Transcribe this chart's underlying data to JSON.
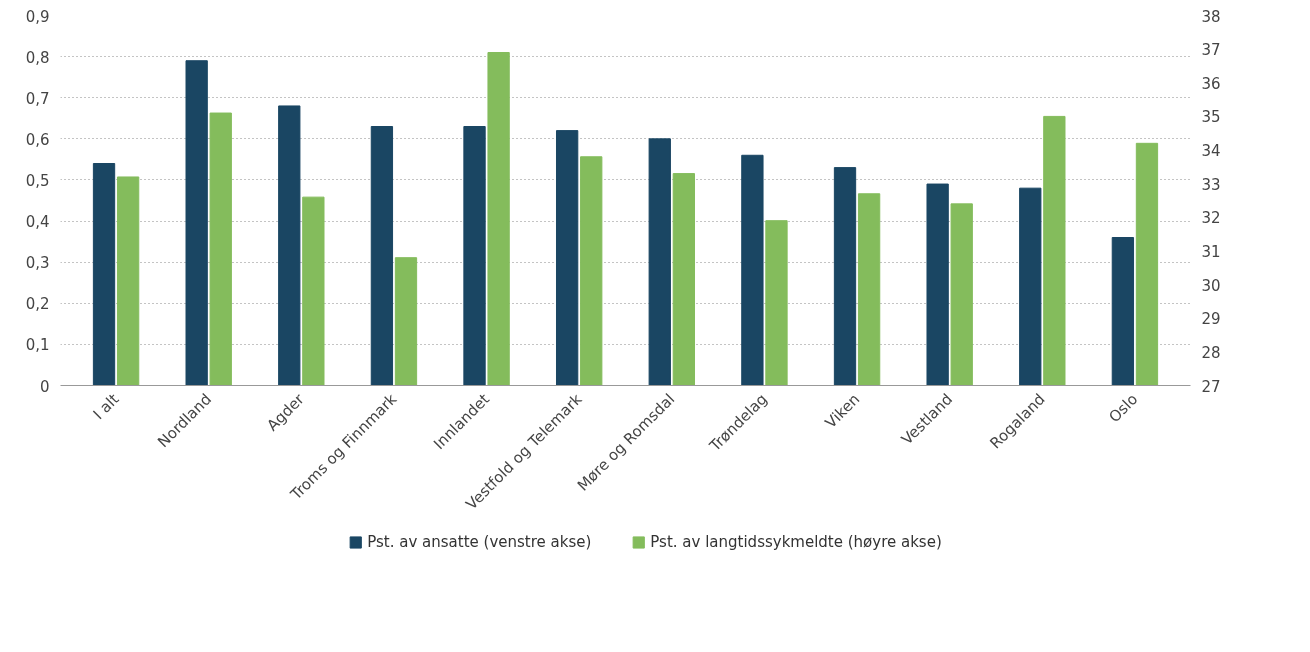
{
  "chart_data": {
    "type": "bar",
    "categories": [
      "I alt",
      "Nordland",
      "Agder",
      "Troms og Finnmark",
      "Innlandet",
      "Vestfold og Telemark",
      "Møre og Romsdal",
      "Trøndelag",
      "Viken",
      "Vestland",
      "Rogaland",
      "Oslo"
    ],
    "series": [
      {
        "name": "Pst. av ansatte (venstre akse)",
        "color": "#1a4663",
        "values": [
          0.54,
          0.79,
          0.68,
          0.63,
          0.63,
          0.62,
          0.6,
          0.56,
          0.53,
          0.49,
          0.48,
          0.36
        ]
      },
      {
        "name": "Pst. av langtidssykmeldte (høyre akse)",
        "color": "#84bc5c",
        "axis": "y2",
        "values": [
          33.2,
          35.1,
          32.6,
          30.8,
          36.9,
          33.8,
          33.3,
          31.9,
          32.7,
          32.4,
          35.0,
          34.2
        ]
      }
    ],
    "ylim": [
      0,
      0.9
    ],
    "yticks": [
      0,
      {
        "value": 0.1,
        "label": "0,1"
      },
      {
        "value": 0.2,
        "label": "0,2"
      },
      {
        "value": 0.3,
        "label": "0,3"
      },
      {
        "value": 0.4,
        "label": "0,4"
      },
      {
        "value": 0.5,
        "label": "0,5"
      },
      {
        "value": 0.6,
        "label": "0,6"
      },
      {
        "value": 0.7,
        "label": "0,7"
      },
      {
        "value": 0.8,
        "label": "0,8"
      },
      {
        "value": 0.9,
        "label": "0,9"
      }
    ],
    "y2lim": [
      27,
      38
    ],
    "y2ticks": [
      27,
      28,
      29,
      30,
      31,
      32,
      33,
      34,
      35,
      36,
      37,
      38
    ],
    "grid": "y",
    "legend": "bottom"
  }
}
